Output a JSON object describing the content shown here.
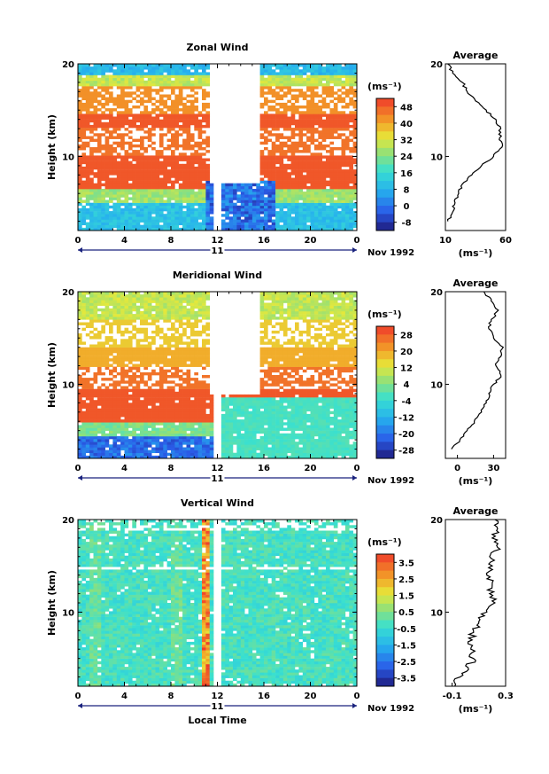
{
  "chart_data": [
    {
      "type": "heatmap",
      "title": "Zonal Wind",
      "ylabel": "Height (km)",
      "xlabel": "",
      "xlim": [
        0,
        24
      ],
      "ylim": [
        2,
        20
      ],
      "x_ticks": [
        "0",
        "4",
        "8",
        "12",
        "16",
        "20",
        "0"
      ],
      "y_ticks": [
        "20",
        "10"
      ],
      "date_day": "11",
      "date_label": "Nov 1992",
      "colorbar_unit": "(ms⁻¹)",
      "colorbar_ticks": [
        "48",
        "40",
        "32",
        "24",
        "16",
        "8",
        "0",
        "-8"
      ],
      "colorbar_range": [
        -12,
        52
      ],
      "profile": {
        "title": "Average",
        "xlabel": "(ms⁻¹)",
        "x_ticks": [
          "10",
          "60"
        ],
        "xlim": [
          10,
          60
        ],
        "y_ticks": [
          "20",
          "10"
        ],
        "points": [
          [
            12,
            3
          ],
          [
            16,
            4
          ],
          [
            18,
            5
          ],
          [
            21,
            6
          ],
          [
            24,
            7
          ],
          [
            32,
            8
          ],
          [
            40,
            9
          ],
          [
            50,
            10
          ],
          [
            57,
            11
          ],
          [
            55,
            12
          ],
          [
            56,
            13
          ],
          [
            52,
            14
          ],
          [
            44,
            15
          ],
          [
            35,
            16
          ],
          [
            28,
            17
          ],
          [
            24,
            18
          ],
          [
            16,
            19
          ],
          [
            12,
            20
          ]
        ]
      }
    },
    {
      "type": "heatmap",
      "title": "Meridional Wind",
      "ylabel": "Height (km)",
      "xlabel": "",
      "xlim": [
        0,
        24
      ],
      "ylim": [
        2,
        20
      ],
      "x_ticks": [
        "0",
        "4",
        "8",
        "12",
        "16",
        "20",
        "0"
      ],
      "y_ticks": [
        "20",
        "10"
      ],
      "date_day": "11",
      "date_label": "Nov 1992",
      "colorbar_unit": "(ms⁻¹)",
      "colorbar_ticks": [
        "28",
        "20",
        "12",
        "4",
        "-4",
        "-12",
        "-20",
        "-28"
      ],
      "colorbar_range": [
        -32,
        32
      ],
      "profile": {
        "title": "Average",
        "xlabel": "(ms⁻¹)",
        "x_ticks": [
          "0",
          "30"
        ],
        "xlim": [
          -10,
          40
        ],
        "y_ticks": [
          "20",
          "10"
        ],
        "points": [
          [
            -5,
            3
          ],
          [
            2,
            4
          ],
          [
            8,
            5
          ],
          [
            14,
            6
          ],
          [
            20,
            7
          ],
          [
            24,
            8
          ],
          [
            26,
            9
          ],
          [
            30,
            10
          ],
          [
            36,
            11
          ],
          [
            32,
            12
          ],
          [
            36,
            13
          ],
          [
            38,
            14
          ],
          [
            30,
            15
          ],
          [
            26,
            16
          ],
          [
            28,
            17
          ],
          [
            34,
            18
          ],
          [
            28,
            19
          ],
          [
            22,
            20
          ]
        ]
      }
    },
    {
      "type": "heatmap",
      "title": "Vertical Wind",
      "ylabel": "Height (km)",
      "xlabel": "Local Time",
      "xlim": [
        0,
        24
      ],
      "ylim": [
        2,
        20
      ],
      "x_ticks": [
        "0",
        "4",
        "8",
        "12",
        "16",
        "20",
        "0"
      ],
      "y_ticks": [
        "20",
        "10"
      ],
      "date_day": "11",
      "date_label": "Nov 1992",
      "colorbar_unit": "(ms⁻¹)",
      "colorbar_ticks": [
        "3.5",
        "2.5",
        "1.5",
        "0.5",
        "-0.5",
        "-1.5",
        "-2.5",
        "-3.5"
      ],
      "colorbar_range": [
        -4,
        4
      ],
      "profile": {
        "title": "Average",
        "xlabel": "(ms⁻¹)",
        "x_ticks": [
          "-0.1",
          "0.3"
        ],
        "xlim": [
          -0.15,
          0.3
        ],
        "y_ticks": [
          "20",
          "10"
        ],
        "points": [
          [
            -0.08,
            2
          ],
          [
            -0.04,
            3
          ],
          [
            0.02,
            4
          ],
          [
            0.06,
            5
          ],
          [
            0.04,
            6
          ],
          [
            0.05,
            7
          ],
          [
            0.06,
            8
          ],
          [
            0.1,
            9
          ],
          [
            0.16,
            10
          ],
          [
            0.22,
            11
          ],
          [
            0.18,
            12
          ],
          [
            0.2,
            13
          ],
          [
            0.16,
            14
          ],
          [
            0.2,
            15
          ],
          [
            0.18,
            16
          ],
          [
            0.24,
            17
          ],
          [
            0.2,
            18
          ],
          [
            0.24,
            19
          ],
          [
            0.22,
            20
          ]
        ]
      }
    }
  ]
}
